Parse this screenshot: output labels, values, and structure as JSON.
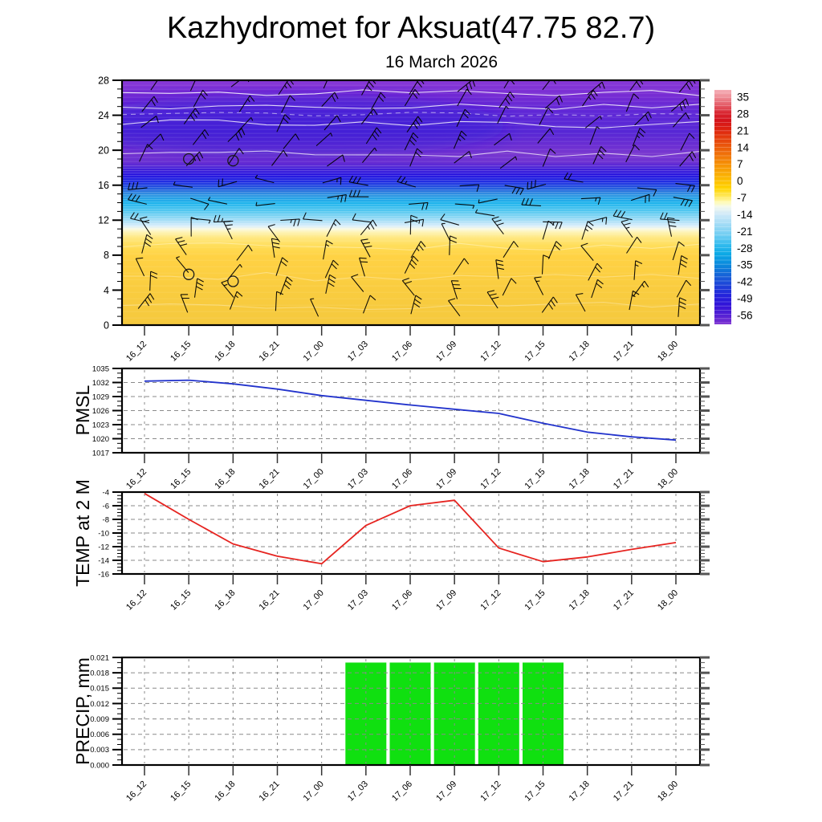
{
  "header": {
    "title": "Kazhydromet for Aksuat(47.75 82.7)",
    "subtitle": "16 March 2026"
  },
  "time_labels": [
    "16_12",
    "16_15",
    "16_18",
    "16_21",
    "17_00",
    "17_03",
    "17_06",
    "17_09",
    "17_12",
    "17_15",
    "17_18",
    "17_21",
    "18_00"
  ],
  "chart_data": [
    {
      "id": "upper_air_cross_section",
      "type": "heatmap",
      "description": "Time-height cross-section: temperature shading with wind barbs",
      "x_labels": [
        "16_12",
        "16_15",
        "16_18",
        "16_21",
        "17_00",
        "17_03",
        "17_06",
        "17_09",
        "17_12",
        "17_15",
        "17_18",
        "17_21",
        "18_00"
      ],
      "y_ticks_top_to_bottom": [
        "28",
        "24",
        "20",
        "16",
        "12",
        "8",
        "4",
        "0"
      ],
      "y_axis_km_range": [
        0,
        28
      ],
      "grid": false,
      "colorbar_ticks_top_to_bottom": [
        "35",
        "28",
        "21",
        "14",
        "7",
        "0",
        "-7",
        "-14",
        "-21",
        "-28",
        "-35",
        "-42",
        "-49",
        "-56"
      ],
      "color_bands_height_km": [
        {
          "from_km": 0,
          "to_km": 10.5,
          "color": "#F8CB3E",
          "meaning": "approx 0 to -7 C"
        },
        {
          "from_km": 10.5,
          "to_km": 11.3,
          "color": "#FDF4BC",
          "meaning": "approx -10 C"
        },
        {
          "from_km": 11.3,
          "to_km": 12.6,
          "color": "#A5DDF6",
          "meaning": "approx -14 to -21 C"
        },
        {
          "from_km": 12.6,
          "to_km": 14.6,
          "color": "#1FB4EC",
          "meaning": "approx -28 C"
        },
        {
          "from_km": 14.6,
          "to_km": 16.1,
          "color": "#2E7ADF",
          "meaning": "approx -35 to -42 C"
        },
        {
          "from_km": 16.1,
          "to_km": 17.6,
          "color": "#2214DE",
          "meaning": "approx -49 C"
        },
        {
          "from_km": 17.6,
          "to_km": 28,
          "color": "#7230D2",
          "meaning": "approx -56 C and colder"
        }
      ],
      "calm_circle_points": [
        {
          "time": "16_15",
          "height_km": 19.0
        },
        {
          "time": "16_18",
          "height_km": 18.8
        },
        {
          "time": "16_15",
          "height_km": 5.8
        },
        {
          "time": "16_18",
          "height_km": 5.0
        }
      ],
      "wind_barbs": {
        "color": "#000000",
        "columns": 13,
        "rows": 13
      }
    },
    {
      "id": "pmsl",
      "type": "line",
      "label": "PMSL",
      "line_color": "#2233CC",
      "x_labels": [
        "16_12",
        "16_15",
        "16_18",
        "16_21",
        "17_00",
        "17_03",
        "17_06",
        "17_09",
        "17_12",
        "17_15",
        "17_18",
        "17_21",
        "18_00"
      ],
      "values": [
        1032.3,
        1032.5,
        1031.7,
        1030.6,
        1029.2,
        1028.2,
        1027.2,
        1026.3,
        1025.4,
        1023.3,
        1021.4,
        1020.4,
        1019.7
      ],
      "y_ticks_top_to_bottom": [
        "1035",
        "1032",
        "1029",
        "1026",
        "1023",
        "1020",
        "1017"
      ],
      "y_range": [
        1017,
        1035
      ],
      "grid": true
    },
    {
      "id": "temp_2m",
      "type": "line",
      "label": "TEMP at 2 M",
      "line_color": "#E62420",
      "x_labels": [
        "16_12",
        "16_15",
        "16_18",
        "16_21",
        "17_00",
        "17_03",
        "17_06",
        "17_09",
        "17_12",
        "17_15",
        "17_18",
        "17_21",
        "18_00"
      ],
      "values": [
        -4.2,
        -8.0,
        -11.6,
        -13.4,
        -14.5,
        -8.9,
        -6.0,
        -5.2,
        -12.2,
        -14.2,
        -13.5,
        -12.4,
        -11.4
      ],
      "y_ticks_top_to_bottom": [
        "-4",
        "-6",
        "-8",
        "-10",
        "-12",
        "-14",
        "-16"
      ],
      "y_range": [
        -16,
        -4
      ],
      "grid": true
    },
    {
      "id": "precip",
      "type": "bar",
      "label": "PRECIP, mm",
      "bar_color": "#10E010",
      "x_labels": [
        "16_12",
        "16_15",
        "16_18",
        "16_21",
        "17_00",
        "17_03",
        "17_06",
        "17_09",
        "17_12",
        "17_15",
        "17_18",
        "17_21",
        "18_00"
      ],
      "values": [
        0,
        0,
        0,
        0,
        0,
        0.02,
        0.02,
        0.02,
        0.02,
        0.02,
        0,
        0,
        0
      ],
      "y_ticks_top_to_bottom": [
        "0.021",
        "0.018",
        "0.015",
        "0.012",
        "0.009",
        "0.006",
        "0.003",
        "0.000"
      ],
      "y_range": [
        0,
        0.021
      ],
      "grid": true
    }
  ]
}
